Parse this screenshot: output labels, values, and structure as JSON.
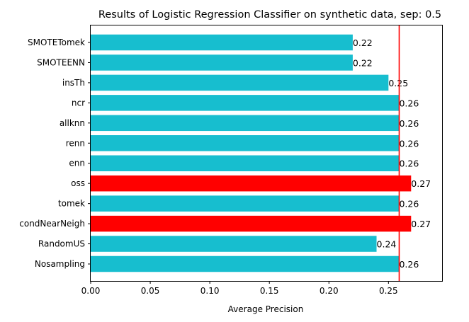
{
  "chart_data": {
    "type": "bar",
    "orientation": "horizontal",
    "title": "Results of Logistic Regression Classifier on synthetic data, sep: 0.5",
    "xlabel": "Average Precision",
    "ylabel": "",
    "xlim": [
      0,
      0.295
    ],
    "xticks": [
      "0.00",
      "0.05",
      "0.10",
      "0.15",
      "0.20",
      "0.25"
    ],
    "xtick_values": [
      0,
      0.05,
      0.1,
      0.15,
      0.2,
      0.25
    ],
    "categories": [
      "Nosampling",
      "RandomUS",
      "condNearNeigh",
      "tomek",
      "oss",
      "enn",
      "renn",
      "allknn",
      "ncr",
      "insTh",
      "SMOTEENN",
      "SMOTETomek"
    ],
    "values": [
      0.259,
      0.24,
      0.269,
      0.259,
      0.269,
      0.259,
      0.259,
      0.259,
      0.259,
      0.25,
      0.22,
      0.22
    ],
    "value_labels": [
      "0.26",
      "0.24",
      "0.27",
      "0.26",
      "0.27",
      "0.26",
      "0.26",
      "0.26",
      "0.26",
      "0.25",
      "0.22",
      "0.22"
    ],
    "highlighted": [
      "condNearNeigh",
      "oss"
    ],
    "reference_line": 0.259,
    "colors": {
      "bar": "#17becf",
      "highlight": "#ff0000",
      "reference_line": "#ff0000"
    },
    "grid": false,
    "legend": "none"
  }
}
